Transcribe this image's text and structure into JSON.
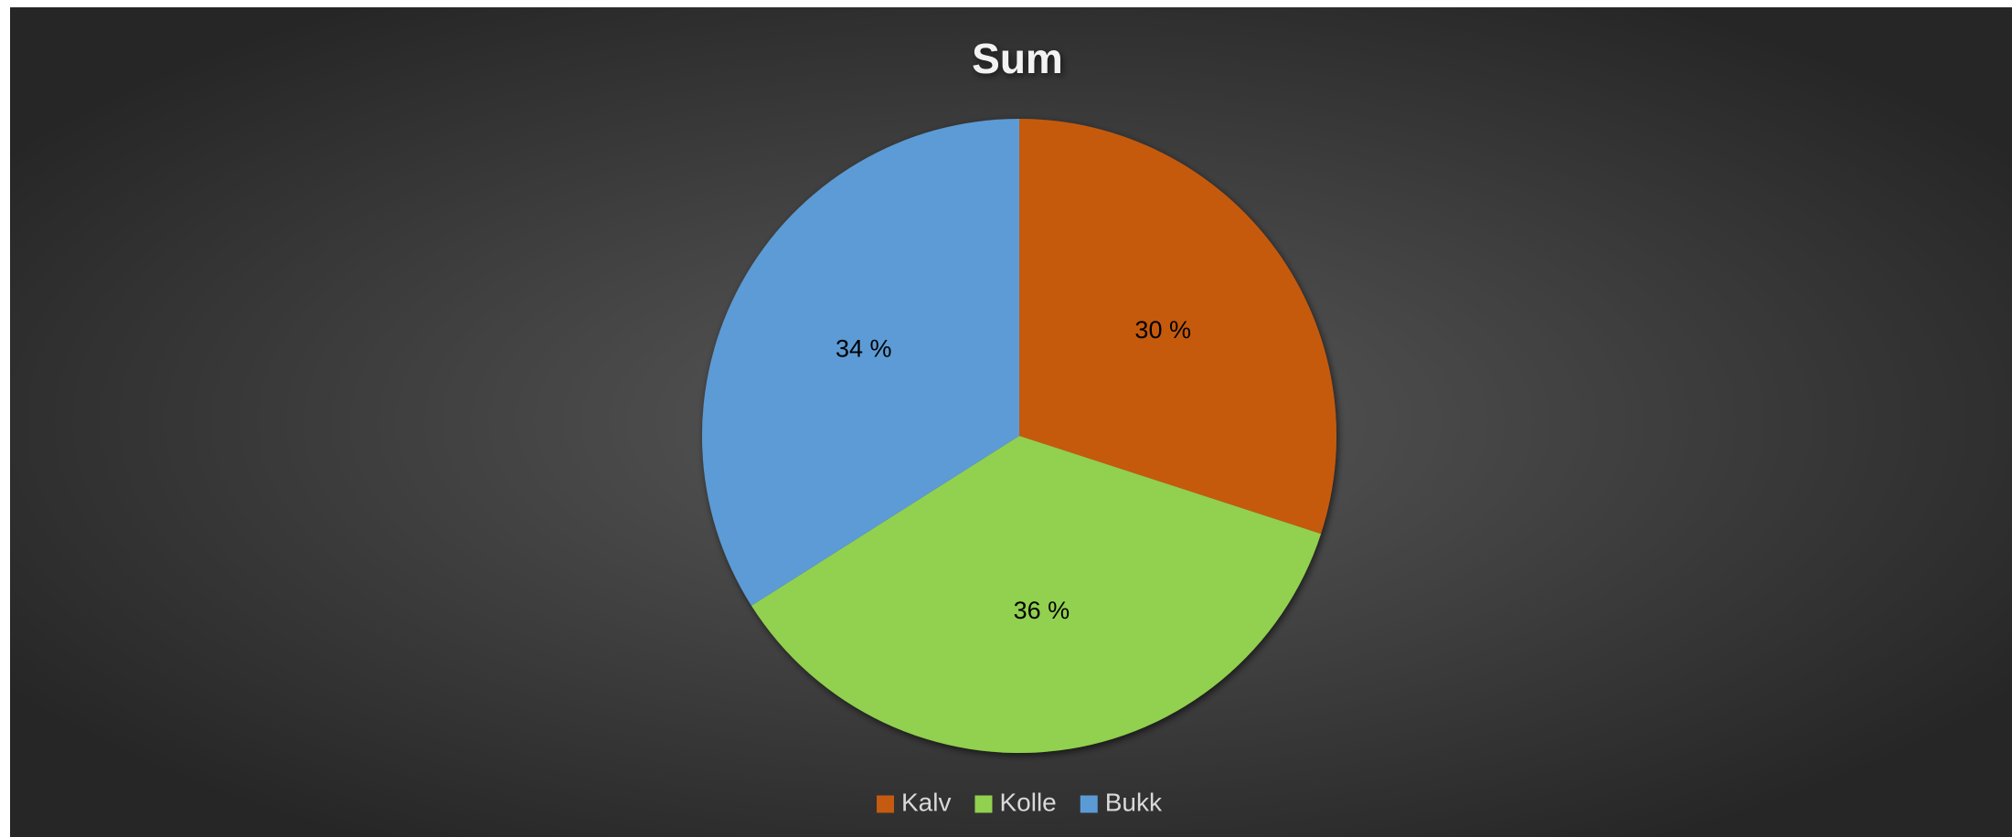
{
  "chart_data": {
    "type": "pie",
    "title": "Sum",
    "categories": [
      "Kalv",
      "Kolle",
      "Bukk"
    ],
    "values": [
      30,
      36,
      34
    ],
    "value_labels": [
      "30 %",
      "36 %",
      "34 %"
    ],
    "colors": [
      "#c55a11",
      "#92d050",
      "#5b9bd5"
    ],
    "legend": "bottom"
  }
}
